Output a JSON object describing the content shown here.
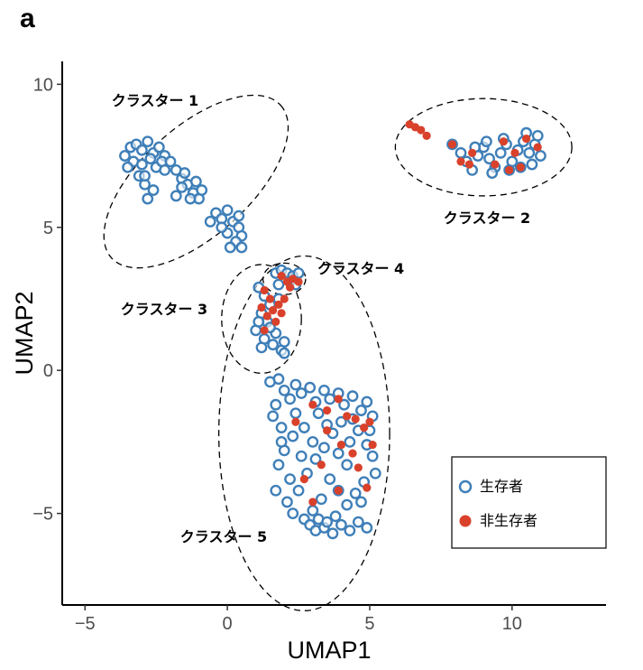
{
  "panel_label": "a",
  "chart_data": {
    "type": "scatter",
    "title": "",
    "xlabel": "UMAP1",
    "ylabel": "UMAP2",
    "xlim": [
      -5.8,
      13.3
    ],
    "ylim": [
      -8.2,
      10.8
    ],
    "x_ticks": [
      -5,
      0,
      5,
      10
    ],
    "y_ticks": [
      -5,
      0,
      5,
      10
    ],
    "x_tick_labels": [
      "−5",
      "0",
      "5",
      "10"
    ],
    "y_tick_labels": [
      "−5",
      "0",
      "5",
      "10"
    ],
    "grid": false,
    "legend_position": "bottom-right",
    "colors": {
      "survivor": "#3f7fb8",
      "non_survivor": "#d9412b"
    },
    "legend": [
      {
        "label": "生存者",
        "marker": "open-circle",
        "color": "#3f7fb8"
      },
      {
        "label": "非生存者",
        "marker": "filled-circle",
        "color": "#d9412b"
      }
    ],
    "clusters": [
      {
        "label": "クラスター 1",
        "center": [
          -1.1,
          6.6
        ],
        "radii": [
          4.0,
          1.9
        ],
        "angle_deg": -42
      },
      {
        "label": "クラスター 2",
        "center": [
          9.0,
          7.8
        ],
        "radii": [
          3.1,
          1.7
        ],
        "angle_deg": 0
      },
      {
        "label": "クラスター 3",
        "center": [
          1.2,
          1.8
        ],
        "radii": [
          1.4,
          1.9
        ],
        "angle_deg": 0
      },
      {
        "label": "クラスター 4",
        "center": [
          2.0,
          3.2
        ],
        "radii": [
          0.75,
          0.55
        ],
        "angle_deg": 0
      },
      {
        "label": "クラスター 5",
        "center": [
          2.7,
          -2.2
        ],
        "radii": [
          3.0,
          6.2
        ],
        "angle_deg": 0
      }
    ],
    "series": [
      {
        "name": "生存者",
        "points": [
          [
            -3.4,
            7.8
          ],
          [
            -3.2,
            7.9
          ],
          [
            -3.0,
            7.7
          ],
          [
            -2.8,
            8.0
          ],
          [
            -2.6,
            7.6
          ],
          [
            -2.4,
            7.8
          ],
          [
            -2.2,
            7.5
          ],
          [
            -3.6,
            7.5
          ],
          [
            -3.3,
            7.3
          ],
          [
            -3.0,
            7.2
          ],
          [
            -2.7,
            7.4
          ],
          [
            -2.5,
            7.1
          ],
          [
            -2.3,
            7.3
          ],
          [
            -3.1,
            6.8
          ],
          [
            -2.9,
            6.5
          ],
          [
            -2.8,
            6.0
          ],
          [
            -2.6,
            6.3
          ],
          [
            -2.0,
            7.3
          ],
          [
            -1.8,
            7.0
          ],
          [
            -1.6,
            6.7
          ],
          [
            -1.4,
            6.5
          ],
          [
            -1.2,
            6.2
          ],
          [
            -1.0,
            6.0
          ],
          [
            -1.5,
            6.9
          ],
          [
            -1.3,
            6.0
          ],
          [
            -1.6,
            6.4
          ],
          [
            -1.1,
            6.6
          ],
          [
            -0.9,
            6.3
          ],
          [
            -1.8,
            6.1
          ],
          [
            -0.4,
            5.5
          ],
          [
            -0.2,
            5.3
          ],
          [
            0.0,
            5.6
          ],
          [
            0.2,
            5.2
          ],
          [
            0.4,
            5.0
          ],
          [
            0.5,
            4.7
          ],
          [
            0.3,
            4.5
          ],
          [
            0.0,
            4.8
          ],
          [
            -0.2,
            5.0
          ],
          [
            0.4,
            5.4
          ],
          [
            0.1,
            4.3
          ],
          [
            -2.2,
            7.0
          ],
          [
            -3.5,
            7.1
          ],
          [
            -2.9,
            6.8
          ],
          [
            -0.6,
            5.2
          ],
          [
            0.5,
            4.3
          ],
          [
            7.9,
            7.9
          ],
          [
            8.2,
            7.6
          ],
          [
            8.4,
            7.3
          ],
          [
            8.6,
            7.0
          ],
          [
            8.8,
            7.5
          ],
          [
            9.0,
            7.8
          ],
          [
            9.2,
            7.4
          ],
          [
            9.4,
            7.1
          ],
          [
            9.6,
            7.6
          ],
          [
            9.8,
            7.9
          ],
          [
            10.0,
            7.3
          ],
          [
            10.2,
            7.7
          ],
          [
            10.4,
            8.0
          ],
          [
            10.6,
            7.6
          ],
          [
            10.8,
            7.9
          ],
          [
            11.0,
            7.5
          ],
          [
            10.9,
            8.2
          ],
          [
            10.5,
            8.3
          ],
          [
            9.9,
            7.0
          ],
          [
            9.3,
            6.9
          ],
          [
            8.7,
            7.8
          ],
          [
            10.3,
            7.1
          ],
          [
            9.7,
            8.1
          ],
          [
            9.1,
            8.0
          ],
          [
            10.7,
            7.2
          ],
          [
            1.1,
            2.9
          ],
          [
            1.3,
            2.6
          ],
          [
            1.5,
            2.3
          ],
          [
            1.2,
            2.0
          ],
          [
            1.4,
            1.7
          ],
          [
            1.0,
            1.4
          ],
          [
            1.3,
            1.1
          ],
          [
            1.6,
            0.9
          ],
          [
            1.9,
            0.7
          ],
          [
            1.2,
            0.8
          ],
          [
            1.7,
            1.3
          ],
          [
            2.0,
            1.0
          ],
          [
            1.8,
            2.5
          ],
          [
            1.1,
            1.7
          ],
          [
            2.0,
            0.6
          ],
          [
            1.5,
            1.5
          ],
          [
            1.7,
            3.4
          ],
          [
            1.9,
            3.5
          ],
          [
            2.1,
            3.4
          ],
          [
            2.3,
            3.3
          ],
          [
            2.5,
            3.4
          ],
          [
            2.2,
            3.1
          ],
          [
            1.8,
            3.0
          ],
          [
            2.4,
            3.0
          ],
          [
            1.5,
            -0.4
          ],
          [
            1.8,
            -0.3
          ],
          [
            2.0,
            -0.7
          ],
          [
            2.2,
            -1.0
          ],
          [
            1.7,
            -1.2
          ],
          [
            2.4,
            -0.5
          ],
          [
            2.6,
            -0.8
          ],
          [
            2.9,
            -0.6
          ],
          [
            3.1,
            -1.1
          ],
          [
            3.4,
            -0.7
          ],
          [
            3.6,
            -1.0
          ],
          [
            3.9,
            -0.8
          ],
          [
            4.1,
            -1.2
          ],
          [
            4.4,
            -0.9
          ],
          [
            4.7,
            -1.4
          ],
          [
            4.9,
            -1.1
          ],
          [
            5.1,
            -1.6
          ],
          [
            1.6,
            -1.6
          ],
          [
            1.9,
            -2.0
          ],
          [
            2.3,
            -2.3
          ],
          [
            2.0,
            -2.8
          ],
          [
            1.8,
            -3.3
          ],
          [
            2.2,
            -3.8
          ],
          [
            2.5,
            -4.2
          ],
          [
            2.8,
            -3.6
          ],
          [
            3.1,
            -3.1
          ],
          [
            3.4,
            -2.7
          ],
          [
            3.7,
            -2.2
          ],
          [
            4.0,
            -1.8
          ],
          [
            4.3,
            -2.5
          ],
          [
            4.6,
            -2.1
          ],
          [
            4.9,
            -2.6
          ],
          [
            5.1,
            -3.0
          ],
          [
            5.2,
            -3.6
          ],
          [
            4.8,
            -3.9
          ],
          [
            4.5,
            -4.3
          ],
          [
            4.2,
            -4.7
          ],
          [
            3.9,
            -4.2
          ],
          [
            3.6,
            -3.8
          ],
          [
            3.3,
            -4.5
          ],
          [
            3.0,
            -4.9
          ],
          [
            2.7,
            -5.2
          ],
          [
            2.9,
            -5.4
          ],
          [
            3.1,
            -5.6
          ],
          [
            3.4,
            -5.5
          ],
          [
            3.7,
            -5.7
          ],
          [
            4.0,
            -5.4
          ],
          [
            4.3,
            -5.6
          ],
          [
            4.6,
            -5.3
          ],
          [
            4.9,
            -5.5
          ],
          [
            3.2,
            -5.2
          ],
          [
            3.5,
            -5.3
          ],
          [
            3.8,
            -5.1
          ],
          [
            2.4,
            -1.5
          ],
          [
            2.7,
            -2.0
          ],
          [
            3.2,
            -1.5
          ],
          [
            3.5,
            -1.9
          ],
          [
            3.9,
            -2.9
          ],
          [
            4.2,
            -3.3
          ],
          [
            2.6,
            -3.0
          ],
          [
            2.1,
            -4.6
          ],
          [
            2.3,
            -5.0
          ],
          [
            1.7,
            -4.2
          ],
          [
            1.9,
            -2.5
          ],
          [
            4.4,
            -1.7
          ],
          [
            5.0,
            -2.1
          ],
          [
            4.7,
            -4.6
          ],
          [
            3.0,
            -2.5
          ]
        ]
      },
      {
        "name": "非生存者",
        "points": [
          [
            6.4,
            8.6
          ],
          [
            6.6,
            8.5
          ],
          [
            6.8,
            8.4
          ],
          [
            7.0,
            8.2
          ],
          [
            7.9,
            7.9
          ],
          [
            8.2,
            7.3
          ],
          [
            8.5,
            7.2
          ],
          [
            8.6,
            7.6
          ],
          [
            9.4,
            7.2
          ],
          [
            9.9,
            7.0
          ],
          [
            10.3,
            7.1
          ],
          [
            10.5,
            8.1
          ],
          [
            10.9,
            7.8
          ],
          [
            9.7,
            8.0
          ],
          [
            10.1,
            7.6
          ],
          [
            1.3,
            2.8
          ],
          [
            1.5,
            2.5
          ],
          [
            1.6,
            2.1
          ],
          [
            1.4,
            1.9
          ],
          [
            1.8,
            2.3
          ],
          [
            1.9,
            2.0
          ],
          [
            1.2,
            2.2
          ],
          [
            1.7,
            1.7
          ],
          [
            1.3,
            1.4
          ],
          [
            2.0,
            2.5
          ],
          [
            1.9,
            3.3
          ],
          [
            2.1,
            3.1
          ],
          [
            2.3,
            3.2
          ],
          [
            2.5,
            3.1
          ],
          [
            2.2,
            2.9
          ],
          [
            3.0,
            -1.2
          ],
          [
            3.5,
            -1.4
          ],
          [
            3.9,
            -1.0
          ],
          [
            4.2,
            -1.6
          ],
          [
            4.5,
            -1.7
          ],
          [
            4.8,
            -2.0
          ],
          [
            5.0,
            -1.8
          ],
          [
            4.0,
            -2.6
          ],
          [
            3.5,
            -2.1
          ],
          [
            4.6,
            -3.4
          ],
          [
            3.9,
            -4.2
          ],
          [
            3.0,
            -4.6
          ],
          [
            2.7,
            -3.8
          ],
          [
            4.4,
            -2.9
          ],
          [
            5.1,
            -2.6
          ],
          [
            2.4,
            -1.8
          ],
          [
            3.3,
            -3.3
          ],
          [
            4.9,
            -4.1
          ]
        ]
      }
    ]
  }
}
